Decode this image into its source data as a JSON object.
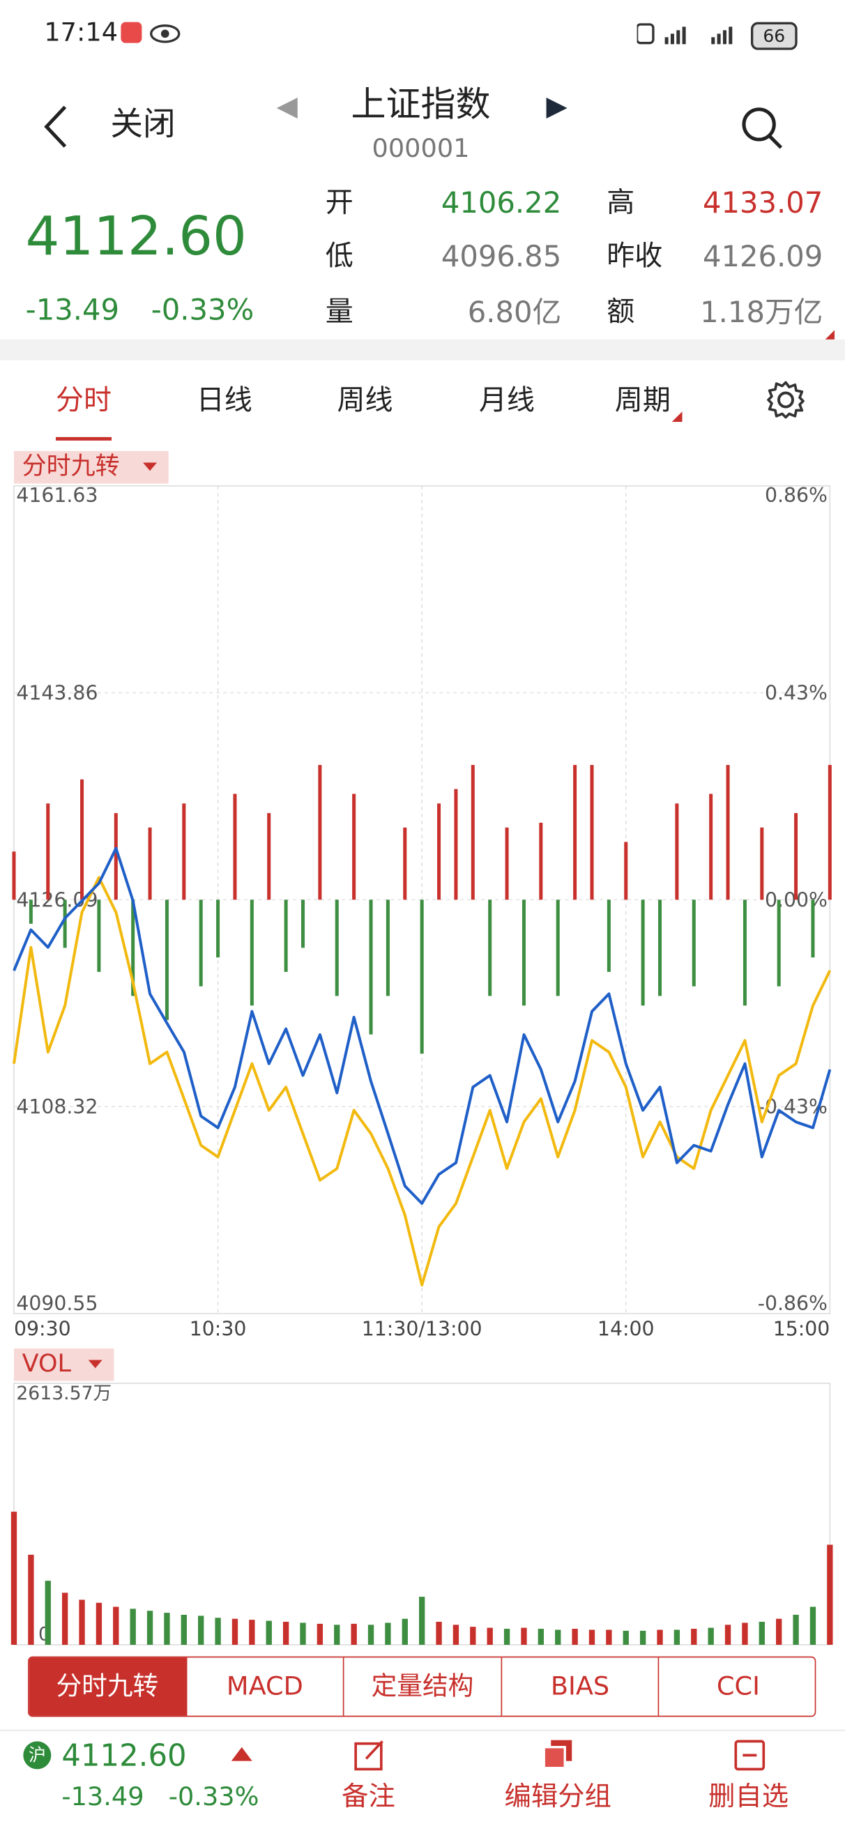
{
  "status_bar": {
    "time": "17:14",
    "battery": "66"
  },
  "header": {
    "back": "关闭",
    "title": "上证指数",
    "code": "000001"
  },
  "quote": {
    "price": "4112.60",
    "change": "-13.49",
    "change_pct": "-0.33%",
    "fields": [
      {
        "label": "开",
        "value": "4106.22"
      },
      {
        "label": "高",
        "value": "4133.07"
      },
      {
        "label": "低",
        "value": "4096.85"
      },
      {
        "label": "昨收",
        "value": "4126.09"
      },
      {
        "label": "量",
        "value": "6.80亿"
      },
      {
        "label": "额",
        "value": "1.18万亿"
      }
    ]
  },
  "tabs": [
    "分时",
    "日线",
    "周线",
    "月线",
    "周期"
  ],
  "chart_data": [
    {
      "type": "line",
      "indicator": "分时九转",
      "xlim": [
        0,
        48
      ],
      "xticks": [
        {
          "value": 0,
          "label": "09:30"
        },
        {
          "value": 12,
          "label": "10:30"
        },
        {
          "value": 24,
          "label": "11:30/13:00"
        },
        {
          "value": 36,
          "label": "14:00"
        },
        {
          "value": 48,
          "label": "15:00"
        }
      ],
      "ylim": [
        4090.55,
        4161.63
      ],
      "yticks": [
        4161.63,
        4143.86,
        4126.09,
        4108.32,
        4090.55
      ],
      "y2lim": [
        -0.86,
        0.86
      ],
      "y2ticks": [
        {
          "value": 0.86,
          "label": "0.86%"
        },
        {
          "value": 0.43,
          "label": "0.43%"
        },
        {
          "value": 0,
          "label": "0.00%"
        },
        {
          "value": -0.43,
          "label": "-0.43%"
        },
        {
          "value": -0.86,
          "label": "-0.86%"
        }
      ],
      "grid": true,
      "series": [
        {
          "type": "bar",
          "axis": "y2",
          "color": "#c8302c",
          "negative_color": "#3e8e41",
          "values": [
            0.1,
            -0.05,
            0.2,
            -0.1,
            0.25,
            -0.15,
            0.18,
            -0.2,
            0.15,
            -0.25,
            0.2,
            -0.18,
            -0.12,
            0.22,
            -0.22,
            0.18,
            -0.15,
            -0.1,
            0.28,
            -0.2,
            0.22,
            -0.28,
            -0.2,
            0.15,
            -0.32,
            0.2,
            0.23,
            0.28,
            -0.2,
            0.15,
            -0.22,
            0.16,
            -0.2,
            0.28,
            0.28,
            -0.15,
            0.12,
            -0.22,
            -0.2,
            0.2,
            -0.18,
            0.22,
            0.28,
            -0.22,
            0.15,
            -0.18,
            0.18,
            -0.12,
            0.28
          ]
        },
        {
          "type": "line",
          "color": "#f2b90f",
          "values": [
            4112,
            4122,
            4113,
            4117,
            4125,
            4128,
            4125,
            4119,
            4112,
            4113,
            4109,
            4105,
            4104,
            4108,
            4112,
            4108,
            4110,
            4106,
            4102,
            4103,
            4108,
            4106,
            4103,
            4099,
            4093,
            4098,
            4100,
            4104,
            4108,
            4103,
            4107,
            4109,
            4104,
            4108,
            4114,
            4113,
            4110,
            4104,
            4107,
            4104,
            4103,
            4108,
            4111,
            4114,
            4107,
            4111,
            4112,
            4117,
            4120
          ]
        },
        {
          "type": "line",
          "color": "#1f5fc8",
          "values": [
            4120.0,
            4123.5,
            4122.0,
            4124.5,
            4126.0,
            4127.5,
            4130.5,
            4126.0,
            4118.0,
            4115.5,
            4113.0,
            4107.5,
            4106.5,
            4110.0,
            4116.5,
            4112.0,
            4115.0,
            4111.0,
            4114.5,
            4109.5,
            4116.0,
            4110.5,
            4106.0,
            4101.5,
            4100.0,
            4102.5,
            4103.5,
            4110.0,
            4111.0,
            4107.0,
            4114.5,
            4111.5,
            4107.0,
            4110.5,
            4116.5,
            4118.0,
            4112.0,
            4108.0,
            4110.0,
            4103.5,
            4105.0,
            4104.5,
            4108.5,
            4112.0,
            4104.0,
            4108.0,
            4107.0,
            4106.5,
            4111.5
          ]
        }
      ]
    },
    {
      "type": "bar",
      "indicator": "VOL",
      "xlim": [
        0,
        48
      ],
      "ylim": [
        0,
        2613.57
      ],
      "yticks": [
        {
          "value": 2613.57,
          "label": "2613.57万"
        },
        0
      ],
      "up_color": "#c8302c",
      "down_color": "#3e8e41",
      "values": [
        1330,
        900,
        640,
        520,
        450,
        420,
        380,
        360,
        340,
        320,
        300,
        290,
        270,
        260,
        250,
        240,
        230,
        220,
        210,
        200,
        210,
        200,
        220,
        260,
        480,
        230,
        200,
        180,
        170,
        160,
        170,
        160,
        150,
        160,
        150,
        150,
        140,
        140,
        150,
        150,
        160,
        170,
        200,
        220,
        230,
        260,
        300,
        380,
        1000
      ]
    }
  ],
  "indicator_tabs": [
    "分时九转",
    "MACD",
    "定量结构",
    "BIAS",
    "CCI"
  ],
  "footer": {
    "market": "沪",
    "price": "4112.60",
    "change": "-13.49",
    "change_pct": "-0.33%",
    "actions": [
      "备注",
      "编辑分组",
      "删自选"
    ]
  }
}
